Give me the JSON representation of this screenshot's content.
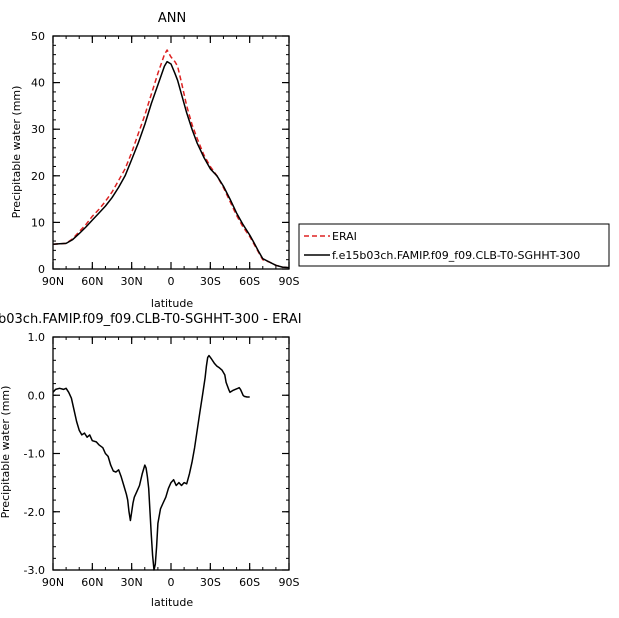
{
  "chart_data": [
    {
      "type": "line",
      "title": "ANN",
      "xlabel": "latitude",
      "ylabel": "Precipitable water (mm)",
      "xlim": [
        90,
        -90
      ],
      "ylim": [
        0,
        50
      ],
      "x_ticks": [
        {
          "value": 90,
          "label": "90N"
        },
        {
          "value": 60,
          "label": "60N"
        },
        {
          "value": 30,
          "label": "30N"
        },
        {
          "value": 0,
          "label": "0"
        },
        {
          "value": -30,
          "label": "30S"
        },
        {
          "value": -60,
          "label": "60S"
        },
        {
          "value": -90,
          "label": "90S"
        }
      ],
      "y_ticks": [
        0,
        10,
        20,
        30,
        40,
        50
      ],
      "grid": false,
      "legend_position": "right",
      "series": [
        {
          "name": "ERAI",
          "color": "#dd2222",
          "dash": "dashed",
          "points": [
            [
              90,
              5.3
            ],
            [
              85,
              5.4
            ],
            [
              80,
              5.5
            ],
            [
              75,
              6.5
            ],
            [
              70,
              8.0
            ],
            [
              65,
              9.5
            ],
            [
              60,
              11.3
            ],
            [
              55,
              12.8
            ],
            [
              50,
              14.5
            ],
            [
              45,
              16.5
            ],
            [
              40,
              19.0
            ],
            [
              35,
              21.5
            ],
            [
              30,
              25.0
            ],
            [
              25,
              29.0
            ],
            [
              20,
              33.0
            ],
            [
              15,
              37.5
            ],
            [
              10,
              42.0
            ],
            [
              5,
              46.0
            ],
            [
              3,
              47.0
            ],
            [
              0,
              45.5
            ],
            [
              -3,
              44.5
            ],
            [
              -5,
              43.5
            ],
            [
              -8,
              40.0
            ],
            [
              -12,
              35.0
            ],
            [
              -16,
              31.0
            ],
            [
              -20,
              28.0
            ],
            [
              -25,
              24.5
            ],
            [
              -30,
              22.0
            ],
            [
              -35,
              20.0
            ],
            [
              -40,
              17.5
            ],
            [
              -45,
              14.5
            ],
            [
              -50,
              11.5
            ],
            [
              -55,
              9.0
            ],
            [
              -60,
              7.0
            ],
            [
              -63,
              5.5
            ],
            [
              -67,
              3.5
            ],
            [
              -70,
              2.0
            ],
            [
              -75,
              1.5
            ],
            [
              -80,
              0.8
            ],
            [
              -85,
              0.4
            ],
            [
              -90,
              0.3
            ]
          ]
        },
        {
          "name": "f.e15b03ch.FAMIP.f09_f09.CLB-T0-SGHHT-300",
          "color": "#000000",
          "dash": "solid",
          "points": [
            [
              90,
              5.3
            ],
            [
              85,
              5.4
            ],
            [
              80,
              5.5
            ],
            [
              75,
              6.3
            ],
            [
              70,
              7.6
            ],
            [
              65,
              9.0
            ],
            [
              60,
              10.5
            ],
            [
              55,
              12.0
            ],
            [
              50,
              13.5
            ],
            [
              45,
              15.3
            ],
            [
              40,
              17.5
            ],
            [
              35,
              20.0
            ],
            [
              30,
              23.5
            ],
            [
              25,
              27.0
            ],
            [
              20,
              31.0
            ],
            [
              15,
              35.5
            ],
            [
              10,
              39.5
            ],
            [
              5,
              43.5
            ],
            [
              3,
              44.5
            ],
            [
              0,
              44.0
            ],
            [
              -3,
              42.0
            ],
            [
              -5,
              40.5
            ],
            [
              -8,
              37.5
            ],
            [
              -12,
              33.5
            ],
            [
              -16,
              30.0
            ],
            [
              -20,
              27.0
            ],
            [
              -25,
              24.0
            ],
            [
              -30,
              21.5
            ],
            [
              -35,
              20.0
            ],
            [
              -40,
              17.8
            ],
            [
              -45,
              15.0
            ],
            [
              -50,
              12.0
            ],
            [
              -55,
              9.5
            ],
            [
              -60,
              7.3
            ],
            [
              -63,
              5.8
            ],
            [
              -67,
              3.7
            ],
            [
              -70,
              2.2
            ],
            [
              -75,
              1.5
            ],
            [
              -80,
              0.8
            ],
            [
              -85,
              0.4
            ],
            [
              -90,
              0.3
            ]
          ]
        }
      ]
    },
    {
      "type": "line",
      "title": "b03ch.FAMIP.f09_f09.CLB-T0-SGHHT-300 - ERAI",
      "xlabel": "latitude",
      "ylabel": "Precipitable water (mm)",
      "xlim": [
        90,
        -90
      ],
      "ylim": [
        -3.0,
        1.0
      ],
      "x_ticks": [
        {
          "value": 90,
          "label": "90N"
        },
        {
          "value": 60,
          "label": "60N"
        },
        {
          "value": 30,
          "label": "30N"
        },
        {
          "value": 0,
          "label": "0"
        },
        {
          "value": -30,
          "label": "30S"
        },
        {
          "value": -60,
          "label": "60S"
        },
        {
          "value": -90,
          "label": "90S"
        }
      ],
      "y_ticks": [
        {
          "value": 1.0,
          "label": "1.0"
        },
        {
          "value": 0.0,
          "label": "0.0"
        },
        {
          "value": -1.0,
          "label": "-1.0"
        },
        {
          "value": -2.0,
          "label": "-2.0"
        },
        {
          "value": -3.0,
          "label": "-3.0"
        }
      ],
      "grid": false,
      "series": [
        {
          "name": "",
          "color": "#000000",
          "dash": "solid",
          "points": [
            [
              90,
              0.05
            ],
            [
              88,
              0.1
            ],
            [
              85,
              0.12
            ],
            [
              82,
              0.1
            ],
            [
              80,
              0.12
            ],
            [
              78,
              0.05
            ],
            [
              76,
              -0.05
            ],
            [
              74,
              -0.25
            ],
            [
              72,
              -0.45
            ],
            [
              70,
              -0.6
            ],
            [
              68,
              -0.68
            ],
            [
              66,
              -0.65
            ],
            [
              64,
              -0.72
            ],
            [
              62,
              -0.68
            ],
            [
              60,
              -0.78
            ],
            [
              57,
              -0.8
            ],
            [
              55,
              -0.85
            ],
            [
              52,
              -0.9
            ],
            [
              50,
              -1.0
            ],
            [
              48,
              -1.05
            ],
            [
              46,
              -1.2
            ],
            [
              44,
              -1.3
            ],
            [
              42,
              -1.32
            ],
            [
              40,
              -1.28
            ],
            [
              38,
              -1.4
            ],
            [
              36,
              -1.55
            ],
            [
              34,
              -1.7
            ],
            [
              33,
              -1.8
            ],
            [
              32,
              -2.0
            ],
            [
              31,
              -2.15
            ],
            [
              30,
              -2.0
            ],
            [
              29,
              -1.85
            ],
            [
              28,
              -1.75
            ],
            [
              26,
              -1.65
            ],
            [
              24,
              -1.55
            ],
            [
              22,
              -1.35
            ],
            [
              20,
              -1.2
            ],
            [
              19,
              -1.25
            ],
            [
              18,
              -1.4
            ],
            [
              17,
              -1.6
            ],
            [
              16,
              -2.0
            ],
            [
              15,
              -2.4
            ],
            [
              14,
              -2.75
            ],
            [
              13,
              -3.0
            ],
            [
              12,
              -2.9
            ],
            [
              11,
              -2.6
            ],
            [
              10,
              -2.2
            ],
            [
              8,
              -1.95
            ],
            [
              6,
              -1.85
            ],
            [
              4,
              -1.75
            ],
            [
              2,
              -1.6
            ],
            [
              0,
              -1.5
            ],
            [
              -2,
              -1.45
            ],
            [
              -4,
              -1.55
            ],
            [
              -6,
              -1.5
            ],
            [
              -8,
              -1.55
            ],
            [
              -10,
              -1.5
            ],
            [
              -12,
              -1.52
            ],
            [
              -14,
              -1.35
            ],
            [
              -16,
              -1.15
            ],
            [
              -18,
              -0.9
            ],
            [
              -20,
              -0.6
            ],
            [
              -22,
              -0.3
            ],
            [
              -24,
              0.0
            ],
            [
              -26,
              0.3
            ],
            [
              -27,
              0.5
            ],
            [
              -28,
              0.65
            ],
            [
              -29,
              0.68
            ],
            [
              -31,
              0.62
            ],
            [
              -33,
              0.55
            ],
            [
              -35,
              0.5
            ],
            [
              -37,
              0.47
            ],
            [
              -39,
              0.43
            ],
            [
              -41,
              0.35
            ],
            [
              -42,
              0.22
            ],
            [
              -44,
              0.1
            ],
            [
              -45,
              0.05
            ],
            [
              -47,
              0.08
            ],
            [
              -49,
              0.1
            ],
            [
              -51,
              0.12
            ],
            [
              -52,
              0.13
            ],
            [
              -53,
              0.1
            ],
            [
              -54,
              0.05
            ],
            [
              -55,
              0.0
            ],
            [
              -56,
              -0.02
            ],
            [
              -58,
              -0.03
            ],
            [
              -60,
              -0.03
            ]
          ]
        }
      ]
    }
  ]
}
